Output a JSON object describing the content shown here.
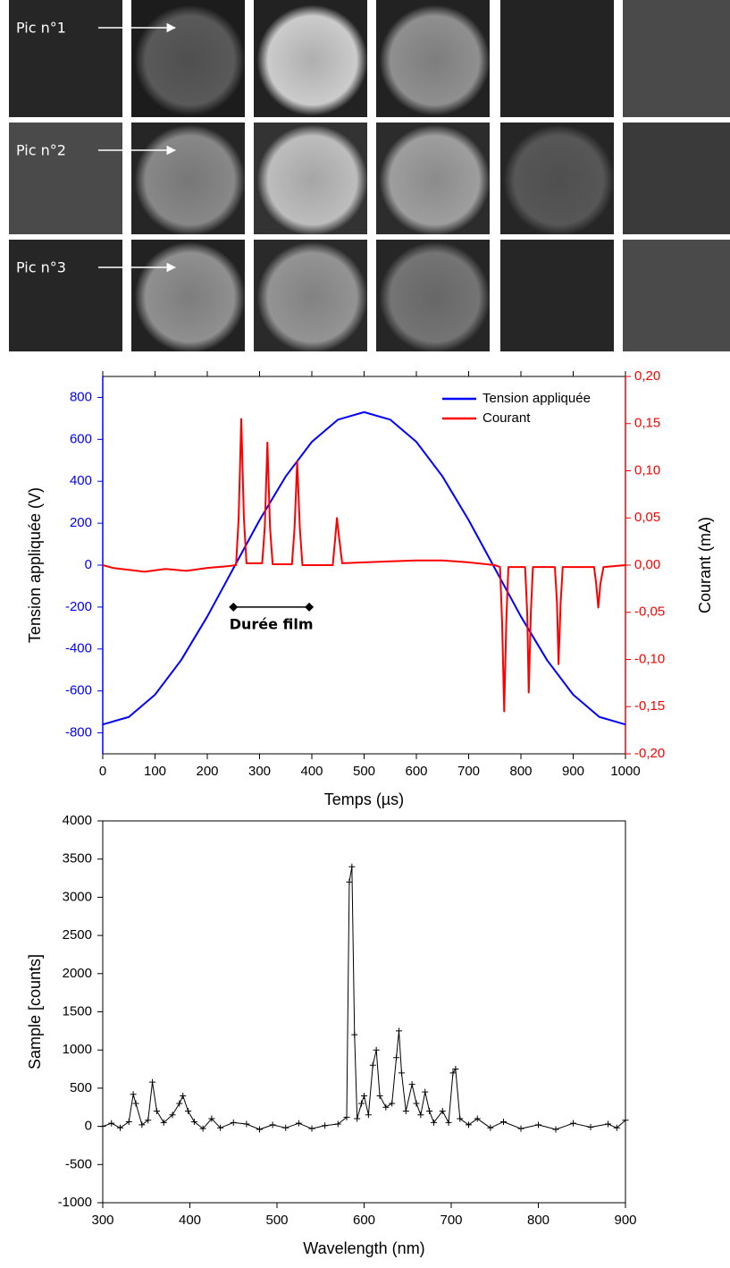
{
  "panels": {
    "labels": [
      "Pic n°1",
      "Pic n°2",
      "Pic n°3"
    ]
  },
  "chart_data": [
    {
      "type": "line",
      "xlabel": "Temps (µs)",
      "ylabel": "Tension appliquée (V)",
      "y2label": "Courant (mA)",
      "xlim": [
        0,
        1000
      ],
      "xticks": [
        0,
        100,
        200,
        300,
        400,
        500,
        600,
        700,
        800,
        900,
        1000
      ],
      "ylim": [
        -900,
        900
      ],
      "yticks": [
        -800,
        -600,
        -400,
        -200,
        0,
        200,
        400,
        600,
        800
      ],
      "y2lim": [
        -0.2,
        0.2
      ],
      "y2ticks": [
        {
          "value": -0.2,
          "label": "-0,20"
        },
        {
          "value": -0.15,
          "label": "-0,15"
        },
        {
          "value": -0.1,
          "label": "-0,10"
        },
        {
          "value": -0.05,
          "label": "-0,05"
        },
        {
          "value": 0,
          "label": "0,00"
        },
        {
          "value": 0.05,
          "label": "0,05"
        },
        {
          "value": 0.1,
          "label": "0,10"
        },
        {
          "value": 0.15,
          "label": "0,15"
        },
        {
          "value": 0.2,
          "label": "0,20"
        }
      ],
      "legend": "upper right",
      "series": [
        {
          "name": "Tension appliquée",
          "color": "#0000ff",
          "x": [
            0,
            50,
            100,
            150,
            200,
            250,
            300,
            350,
            400,
            450,
            500,
            550,
            600,
            650,
            700,
            750,
            800,
            850,
            900,
            950,
            1000
          ],
          "values": [
            -760,
            -724,
            -618,
            -453,
            -245,
            -15,
            215,
            423,
            588,
            694,
            730,
            694,
            588,
            423,
            215,
            -15,
            -245,
            -453,
            -618,
            -724,
            -760
          ]
        },
        {
          "name": "Courant",
          "color": "#ff0000",
          "axis": "y2",
          "x": [
            0,
            20,
            50,
            80,
            120,
            160,
            200,
            240,
            255,
            260,
            265,
            270,
            275,
            305,
            310,
            315,
            320,
            325,
            362,
            367,
            372,
            377,
            382,
            440,
            445,
            448,
            452,
            458,
            500,
            550,
            600,
            650,
            700,
            750,
            760,
            764,
            768,
            772,
            776,
            808,
            812,
            815,
            819,
            823,
            865,
            869,
            872,
            876,
            880,
            940,
            944,
            948,
            952,
            958,
            1000
          ],
          "values": [
            0,
            -0.003,
            -0.005,
            -0.007,
            -0.004,
            -0.006,
            -0.003,
            -0.001,
            0,
            0.05,
            0.155,
            0.05,
            0.002,
            0.002,
            0.04,
            0.13,
            0.04,
            0.001,
            0.001,
            0.04,
            0.11,
            0.04,
            0,
            0,
            0.03,
            0.05,
            0.03,
            0.002,
            0.003,
            0.004,
            0.005,
            0.005,
            0.003,
            0,
            -0.002,
            -0.06,
            -0.155,
            -0.06,
            -0.002,
            -0.002,
            -0.05,
            -0.135,
            -0.05,
            -0.002,
            -0.002,
            -0.04,
            -0.105,
            -0.04,
            -0.002,
            -0.002,
            -0.02,
            -0.045,
            -0.02,
            -0.002,
            0
          ]
        }
      ],
      "annotation": {
        "text": "Durée film",
        "x": [
          250,
          395
        ],
        "y": -200
      }
    },
    {
      "type": "line",
      "marker": "plus",
      "xlabel": "Wavelength (nm)",
      "ylabel": "Sample [counts]",
      "xlim": [
        300,
        900
      ],
      "xticks": [
        300,
        400,
        500,
        600,
        700,
        800,
        900
      ],
      "ylim": [
        -1000,
        4000
      ],
      "yticks": [
        -1000,
        -500,
        0,
        500,
        1000,
        1500,
        2000,
        2500,
        3000,
        3500,
        4000
      ],
      "series": [
        {
          "color": "#000000",
          "x": [
            300,
            310,
            320,
            330,
            335,
            338,
            345,
            352,
            357,
            362,
            370,
            380,
            388,
            392,
            398,
            405,
            415,
            425,
            435,
            450,
            465,
            480,
            495,
            510,
            525,
            540,
            555,
            570,
            580,
            583,
            586,
            589,
            592,
            597,
            600,
            605,
            610,
            614,
            618,
            625,
            632,
            637,
            640,
            643,
            648,
            655,
            660,
            665,
            670,
            675,
            680,
            690,
            697,
            702,
            705,
            710,
            720,
            730,
            745,
            760,
            780,
            800,
            820,
            840,
            860,
            880,
            890,
            900
          ],
          "values": [
            0,
            40,
            -20,
            60,
            420,
            300,
            20,
            80,
            580,
            200,
            50,
            150,
            300,
            400,
            200,
            60,
            -30,
            100,
            -20,
            50,
            30,
            -40,
            20,
            -20,
            40,
            -30,
            10,
            30,
            120,
            3200,
            3400,
            1200,
            100,
            300,
            400,
            150,
            800,
            1000,
            400,
            250,
            300,
            900,
            1250,
            700,
            200,
            550,
            300,
            150,
            450,
            200,
            50,
            200,
            50,
            700,
            750,
            100,
            20,
            100,
            -20,
            60,
            -30,
            20,
            -40,
            40,
            -10,
            30,
            -20,
            80
          ]
        }
      ]
    }
  ]
}
